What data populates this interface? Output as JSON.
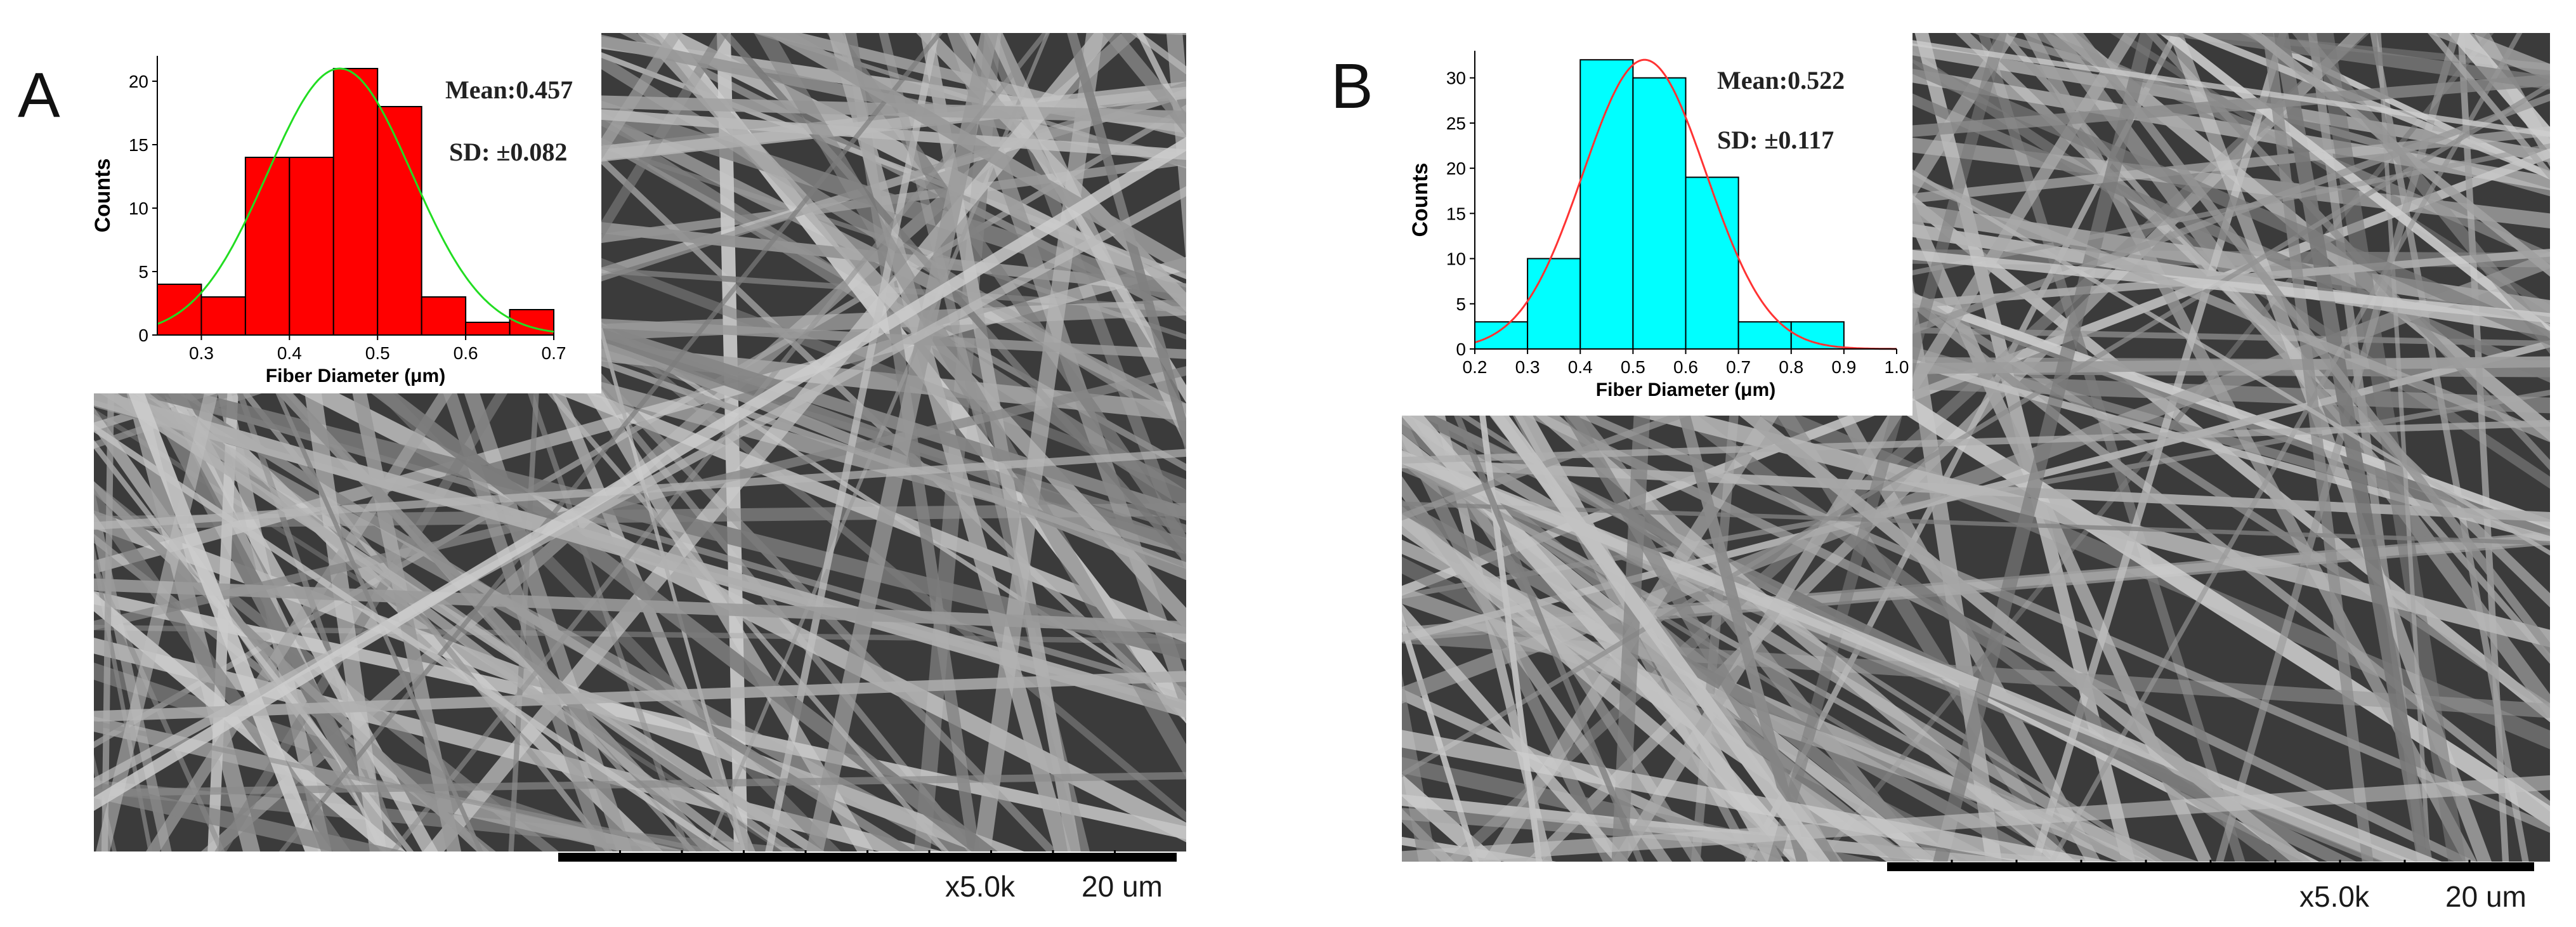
{
  "panels": [
    {
      "letter": "A",
      "magnification": "x5.0k",
      "scale_label": "20 um",
      "stats": {
        "mean_label": "Mean:",
        "mean_value": "0.457",
        "sd_label": "SD:",
        "sd_value": "±0.082"
      },
      "colors": {
        "bar": "#ff0000",
        "fit": "#22dd22",
        "edge": "#000000"
      }
    },
    {
      "letter": "B",
      "magnification": "x5.0k",
      "scale_label": "20 um",
      "stats": {
        "mean_label": "Mean:",
        "mean_value": "0.522",
        "sd_label": "SD:",
        "sd_value": "±0.117"
      },
      "colors": {
        "bar": "#00ffff",
        "fit": "#ff3333",
        "edge": "#000000"
      }
    }
  ],
  "chart_data": [
    {
      "type": "bar",
      "panel": "A",
      "xlabel": "Fiber Diameter (μm)",
      "ylabel": "Counts",
      "bin_width": 0.05,
      "bin_centers": [
        0.275,
        0.325,
        0.375,
        0.425,
        0.475,
        0.525,
        0.575,
        0.625,
        0.675
      ],
      "values": [
        4,
        3,
        14,
        14,
        21,
        18,
        3,
        1,
        2
      ],
      "xlim": [
        0.25,
        0.7
      ],
      "ylim": [
        0,
        22
      ],
      "xticks": [
        "0.3",
        "0.4",
        "0.5",
        "0.6",
        "0.7"
      ],
      "yticks": [
        "0",
        "5",
        "10",
        "15",
        "20"
      ],
      "fit": {
        "type": "gaussian",
        "mean": 0.457,
        "sd": 0.082,
        "peak": 21
      },
      "grid": false
    },
    {
      "type": "bar",
      "panel": "B",
      "xlabel": "Fiber Diameter (μm)",
      "ylabel": "Counts",
      "bin_width": 0.1,
      "bin_centers": [
        0.25,
        0.35,
        0.45,
        0.55,
        0.65,
        0.75,
        0.85
      ],
      "values": [
        3,
        10,
        32,
        30,
        19,
        3,
        3
      ],
      "xlim": [
        0.2,
        1.0
      ],
      "ylim": [
        0,
        33
      ],
      "xticks": [
        "0.2",
        "0.3",
        "0.4",
        "0.5",
        "0.6",
        "0.7",
        "0.8",
        "0.9",
        "1.0"
      ],
      "yticks": [
        "0",
        "5",
        "10",
        "15",
        "20",
        "25",
        "30"
      ],
      "fit": {
        "type": "gaussian",
        "mean": 0.522,
        "sd": 0.117,
        "peak": 32
      },
      "grid": false
    }
  ]
}
